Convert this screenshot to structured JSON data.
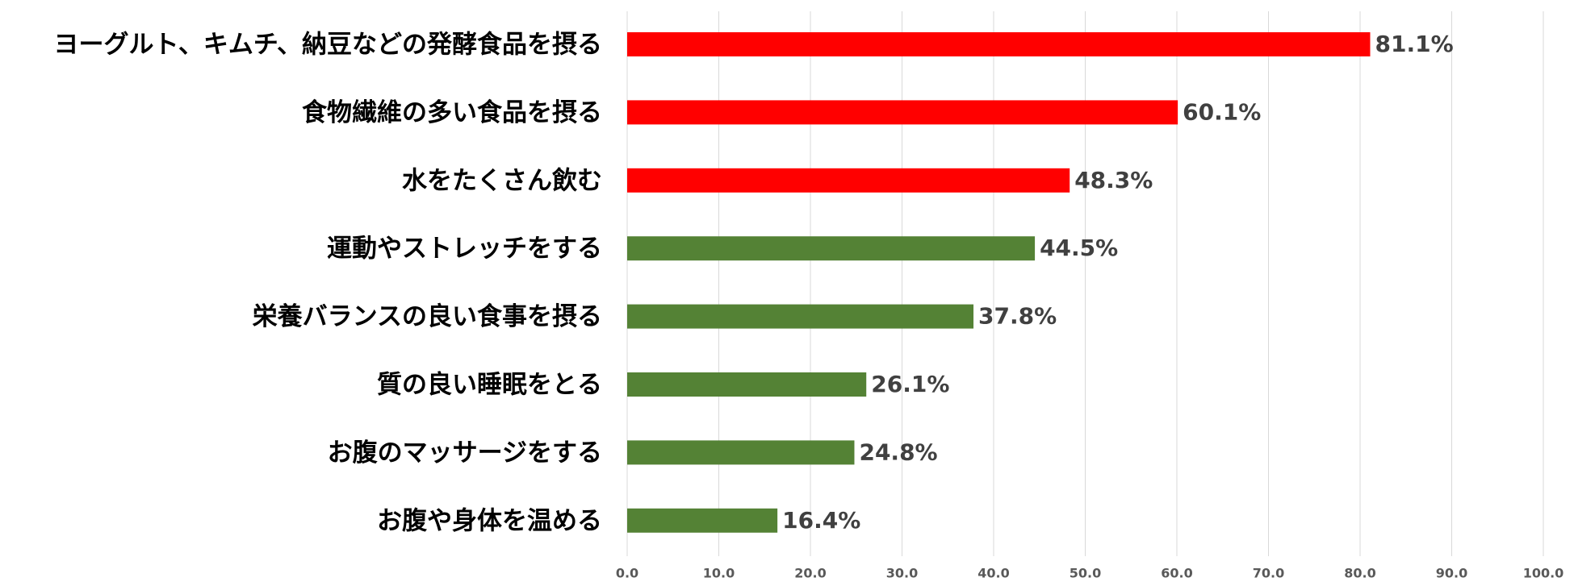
{
  "chart_data": {
    "type": "hbar",
    "categories": [
      "ヨーグルト、キムチ、納豆などの発酵食品を摂る",
      "食物繊維の多い食品を摂る",
      "水をたくさん飲む",
      "運動やストレッチをする",
      "栄養バランスの良い食事を摂る",
      "質の良い睡眠をとる",
      "お腹のマッサージをする",
      "お腹や身体を温める"
    ],
    "values": [
      81.1,
      60.1,
      48.3,
      44.5,
      37.8,
      26.1,
      24.8,
      16.4
    ],
    "value_labels": [
      "81.1%",
      "60.1%",
      "48.3%",
      "44.5%",
      "37.8%",
      "26.1%",
      "24.8%",
      "16.4%"
    ],
    "colors": [
      "#ff0000",
      "#ff0000",
      "#ff0000",
      "#548235",
      "#548235",
      "#548235",
      "#548235",
      "#548235"
    ],
    "xlim": [
      0,
      100
    ],
    "xticks": [
      {
        "value": 0,
        "label": "0.0"
      },
      {
        "value": 10,
        "label": "10.0"
      },
      {
        "value": 20,
        "label": "20.0"
      },
      {
        "value": 30,
        "label": "30.0"
      },
      {
        "value": 40,
        "label": "40.0"
      },
      {
        "value": 50,
        "label": "50.0"
      },
      {
        "value": 60,
        "label": "60.0"
      },
      {
        "value": 70,
        "label": "70.0"
      },
      {
        "value": 80,
        "label": "80.0"
      },
      {
        "value": 90,
        "label": "90.0"
      },
      {
        "value": 100,
        "label": "100.0"
      }
    ],
    "grid": true
  }
}
